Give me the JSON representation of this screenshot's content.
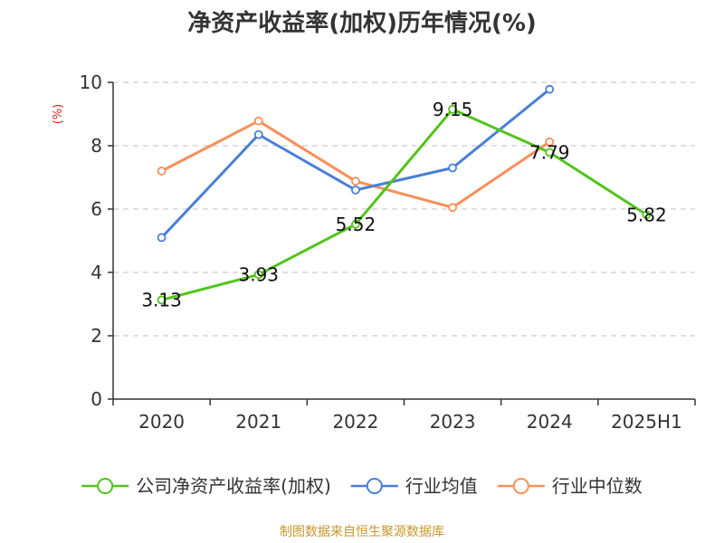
{
  "chart_data": {
    "type": "line",
    "title": "净资产收益率(加权)历年情况(%)",
    "ylabel": "(%)",
    "categories": [
      "2020",
      "2021",
      "2022",
      "2023",
      "2024",
      "2025H1"
    ],
    "ylim": [
      0,
      10
    ],
    "yticks": [
      0,
      2,
      4,
      6,
      8,
      10
    ],
    "grid": true,
    "legend_position": "bottom",
    "series": [
      {
        "name": "公司净资产收益率(加权)",
        "color": "#52c41a",
        "values": [
          3.13,
          3.93,
          5.52,
          9.15,
          7.79,
          5.82
        ],
        "labels": [
          "3.13",
          "3.93",
          "5.52",
          "9.15",
          "7.79",
          "5.82"
        ]
      },
      {
        "name": "行业均值",
        "color": "#4a7fd8",
        "values": [
          5.1,
          8.35,
          6.6,
          7.3,
          9.78,
          null
        ]
      },
      {
        "name": "行业中位数",
        "color": "#f7905a",
        "values": [
          7.2,
          8.78,
          6.88,
          6.05,
          8.12,
          null
        ]
      }
    ]
  },
  "source": "制图数据来自恒生聚源数据库"
}
